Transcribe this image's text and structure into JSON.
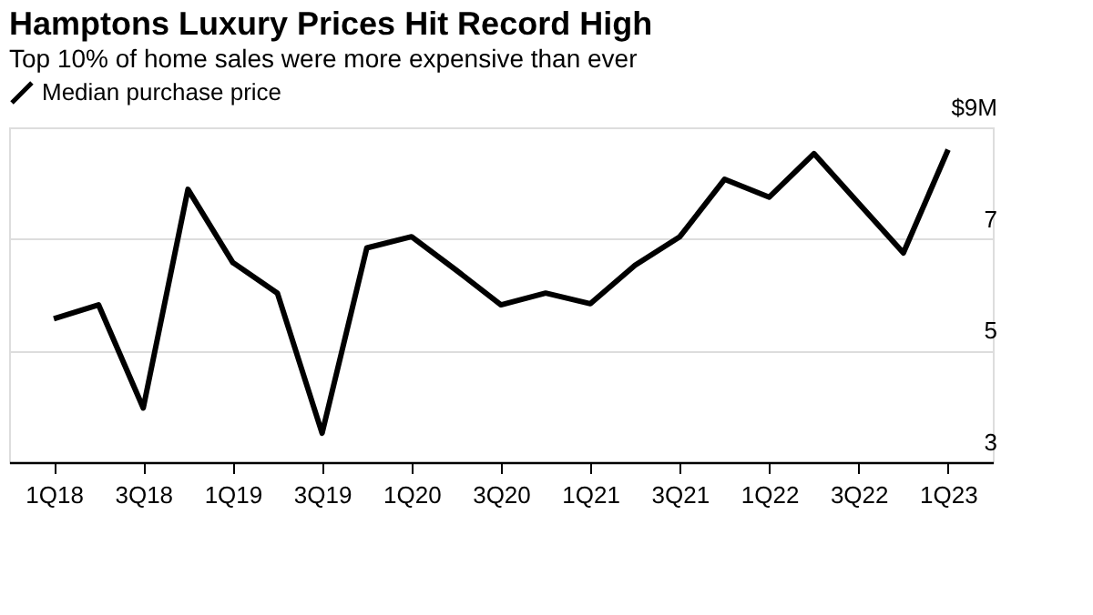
{
  "chart_data": {
    "type": "line",
    "title": "Hamptons Luxury Prices Hit Record High",
    "subtitle": "Top 10% of home sales were more expensive than ever",
    "categories": [
      "1Q18",
      null,
      "3Q18",
      null,
      "1Q19",
      null,
      "3Q19",
      null,
      "1Q20",
      null,
      "3Q20",
      null,
      "1Q21",
      null,
      "3Q21",
      null,
      "1Q22",
      null,
      "3Q22",
      null,
      "1Q23"
    ],
    "series": [
      {
        "name": "Median purchase price",
        "color": "#000000",
        "values": [
          5.57,
          5.82,
          3.97,
          7.89,
          6.58,
          6.03,
          3.52,
          6.84,
          7.04,
          6.44,
          5.82,
          6.03,
          5.84,
          6.53,
          7.04,
          8.07,
          7.75,
          8.53,
          7.64,
          6.75,
          8.6
        ]
      }
    ],
    "ylim": [
      3,
      9
    ],
    "yticks": [
      3,
      5,
      7,
      {
        "value": 9,
        "label": "$9M"
      }
    ],
    "grid": "y",
    "legend": "top left",
    "marker": "none",
    "line_style": "solid"
  }
}
